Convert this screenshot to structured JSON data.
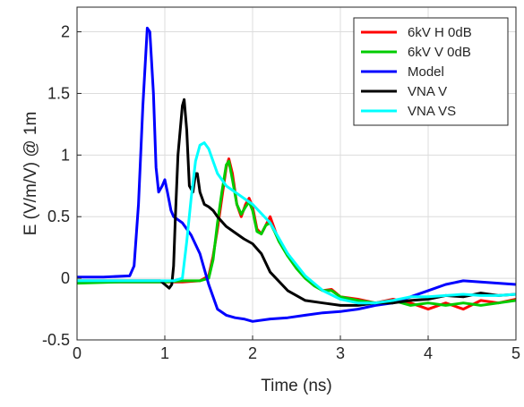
{
  "chart_data": {
    "type": "line",
    "title": "",
    "xlabel": "Time (ns)",
    "ylabel": "E (V/m/V) @ 1m",
    "xlim": [
      0,
      5
    ],
    "ylim": [
      -0.5,
      2.2
    ],
    "xticks": [
      0,
      1,
      2,
      3,
      4,
      5
    ],
    "xtick_labels": [
      "0",
      "1",
      "2",
      "3",
      "4",
      "5"
    ],
    "yticks": [
      -0.5,
      0,
      0.5,
      1,
      1.5,
      2
    ],
    "ytick_labels": [
      "-0.5",
      "0",
      "0.5",
      "1",
      "1.5",
      "2"
    ],
    "grid": true,
    "legend_position": "top-right",
    "series": [
      {
        "name": "6kV H  0dB",
        "color": "#ff0000",
        "x": [
          0,
          0.5,
          1.0,
          1.2,
          1.4,
          1.5,
          1.55,
          1.6,
          1.65,
          1.7,
          1.73,
          1.77,
          1.82,
          1.87,
          1.92,
          1.96,
          2.0,
          2.05,
          2.1,
          2.15,
          2.2,
          2.25,
          2.3,
          2.4,
          2.5,
          2.6,
          2.7,
          2.8,
          2.9,
          3.0,
          3.2,
          3.4,
          3.6,
          3.8,
          4.0,
          4.2,
          4.4,
          4.6,
          4.8,
          5.0
        ],
        "y": [
          -0.03,
          -0.03,
          -0.03,
          -0.03,
          -0.02,
          0.02,
          0.18,
          0.4,
          0.65,
          0.9,
          0.97,
          0.85,
          0.6,
          0.5,
          0.6,
          0.65,
          0.58,
          0.4,
          0.36,
          0.43,
          0.5,
          0.4,
          0.3,
          0.2,
          0.1,
          0.0,
          -0.05,
          -0.1,
          -0.09,
          -0.15,
          -0.17,
          -0.2,
          -0.17,
          -0.2,
          -0.25,
          -0.2,
          -0.25,
          -0.18,
          -0.2,
          -0.17
        ]
      },
      {
        "name": "6kV V  0dB",
        "color": "#00cc00",
        "x": [
          0,
          0.5,
          1.0,
          1.2,
          1.4,
          1.5,
          1.55,
          1.6,
          1.65,
          1.7,
          1.73,
          1.77,
          1.82,
          1.87,
          1.92,
          1.96,
          2.0,
          2.05,
          2.1,
          2.15,
          2.2,
          2.25,
          2.3,
          2.4,
          2.5,
          2.6,
          2.7,
          2.8,
          2.9,
          3.0,
          3.2,
          3.4,
          3.6,
          3.8,
          4.0,
          4.2,
          4.4,
          4.6,
          4.8,
          5.0
        ],
        "y": [
          -0.04,
          -0.03,
          -0.03,
          -0.02,
          -0.02,
          0.0,
          0.15,
          0.45,
          0.7,
          0.92,
          0.95,
          0.8,
          0.6,
          0.52,
          0.58,
          0.62,
          0.55,
          0.38,
          0.36,
          0.43,
          0.45,
          0.38,
          0.3,
          0.18,
          0.08,
          0.0,
          -0.06,
          -0.1,
          -0.1,
          -0.15,
          -0.18,
          -0.2,
          -0.18,
          -0.22,
          -0.2,
          -0.22,
          -0.2,
          -0.22,
          -0.2,
          -0.18
        ]
      },
      {
        "name": "Model",
        "color": "#0000ff",
        "x": [
          0,
          0.3,
          0.6,
          0.65,
          0.7,
          0.75,
          0.8,
          0.83,
          0.87,
          0.9,
          0.93,
          0.97,
          1.0,
          1.03,
          1.07,
          1.1,
          1.2,
          1.3,
          1.4,
          1.5,
          1.6,
          1.7,
          1.8,
          1.9,
          2.0,
          2.2,
          2.4,
          2.6,
          2.8,
          3.0,
          3.2,
          3.4,
          3.6,
          3.8,
          4.0,
          4.2,
          4.4,
          4.6,
          4.8,
          5.0
        ],
        "y": [
          0.01,
          0.01,
          0.02,
          0.1,
          0.6,
          1.4,
          2.03,
          2.0,
          1.5,
          0.9,
          0.7,
          0.75,
          0.8,
          0.7,
          0.55,
          0.5,
          0.45,
          0.35,
          0.2,
          -0.05,
          -0.25,
          -0.3,
          -0.32,
          -0.33,
          -0.35,
          -0.33,
          -0.32,
          -0.3,
          -0.28,
          -0.27,
          -0.25,
          -0.22,
          -0.2,
          -0.15,
          -0.1,
          -0.05,
          -0.02,
          -0.03,
          -0.04,
          -0.05
        ]
      },
      {
        "name": "VNA V",
        "color": "#000000",
        "x": [
          0,
          0.5,
          0.95,
          1.0,
          1.05,
          1.08,
          1.1,
          1.12,
          1.15,
          1.2,
          1.22,
          1.25,
          1.28,
          1.32,
          1.35,
          1.37,
          1.4,
          1.45,
          1.5,
          1.55,
          1.6,
          1.7,
          1.8,
          1.9,
          2.0,
          2.1,
          2.2,
          2.4,
          2.6,
          2.8,
          3.0,
          3.2,
          3.4,
          3.6,
          3.8,
          4.0,
          4.2,
          4.4,
          4.6,
          4.8,
          5.0
        ],
        "y": [
          -0.02,
          -0.02,
          -0.02,
          -0.05,
          -0.08,
          -0.05,
          0.1,
          0.5,
          1.0,
          1.4,
          1.45,
          1.2,
          0.75,
          0.7,
          0.85,
          0.85,
          0.7,
          0.6,
          0.58,
          0.55,
          0.5,
          0.42,
          0.37,
          0.32,
          0.28,
          0.2,
          0.05,
          -0.1,
          -0.18,
          -0.2,
          -0.22,
          -0.22,
          -0.2,
          -0.2,
          -0.18,
          -0.17,
          -0.14,
          -0.15,
          -0.12,
          -0.14,
          -0.13
        ]
      },
      {
        "name": "VNA VS",
        "color": "#00ffff",
        "x": [
          0,
          0.5,
          1.0,
          1.1,
          1.2,
          1.25,
          1.3,
          1.35,
          1.4,
          1.45,
          1.5,
          1.55,
          1.6,
          1.7,
          1.8,
          1.9,
          2.0,
          2.2,
          2.4,
          2.6,
          2.8,
          3.0,
          3.2,
          3.4,
          3.6,
          3.8,
          4.0,
          4.2,
          4.4,
          4.6,
          4.8,
          5.0
        ],
        "y": [
          -0.02,
          -0.02,
          -0.02,
          -0.02,
          0.0,
          0.3,
          0.65,
          0.95,
          1.08,
          1.1,
          1.05,
          0.95,
          0.85,
          0.75,
          0.7,
          0.65,
          0.6,
          0.45,
          0.2,
          0.02,
          -0.1,
          -0.17,
          -0.2,
          -0.2,
          -0.18,
          -0.15,
          -0.15,
          -0.14,
          -0.13,
          -0.14,
          -0.14,
          -0.13
        ]
      }
    ]
  }
}
